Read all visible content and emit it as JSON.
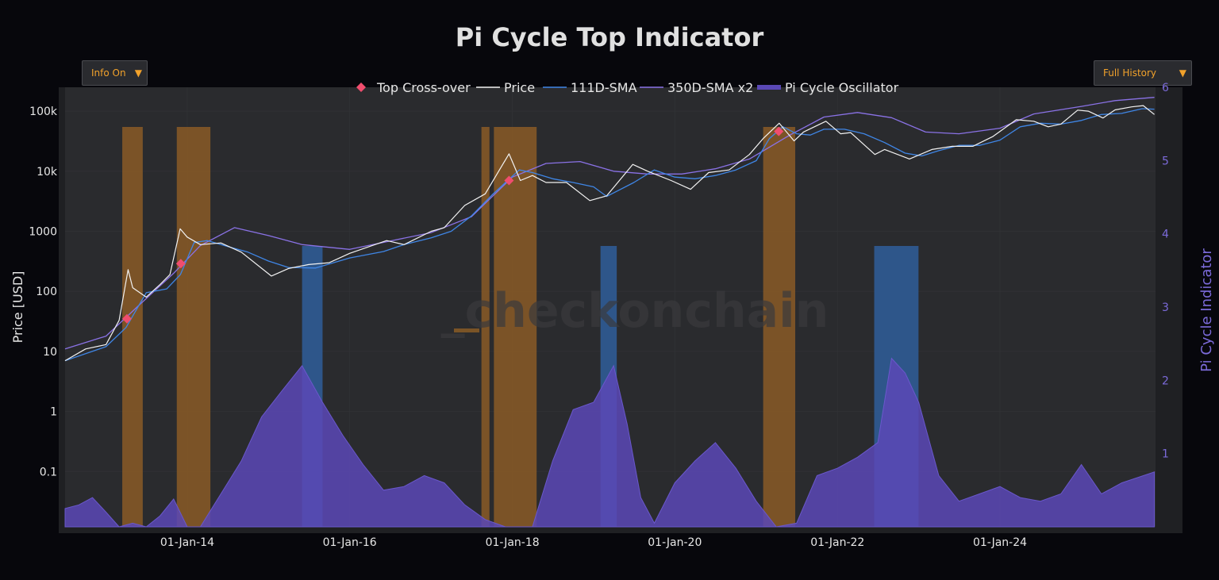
{
  "ui": {
    "info_dropdown": {
      "selected": "Info On"
    },
    "range_dropdown": {
      "selected": "Full History"
    }
  },
  "chart_data": {
    "type": "line",
    "title": "Pi Cycle Top Indicator",
    "ylabel": "Price [USD]",
    "y2label": "Pi Cycle Indicator",
    "watermark": "_checkonchain",
    "yscale": "log",
    "yticks": [
      {
        "value": 0.1,
        "label": "0.1"
      },
      {
        "value": 1,
        "label": "1"
      },
      {
        "value": 10,
        "label": "10"
      },
      {
        "value": 100,
        "label": "100"
      },
      {
        "value": 1000,
        "label": "1000"
      },
      {
        "value": 10000,
        "label": "10k"
      },
      {
        "value": 100000,
        "label": "100k"
      }
    ],
    "ylim": [
      0.012,
      250000
    ],
    "y2ticks": [
      1,
      2,
      3,
      4,
      5,
      6
    ],
    "y2lim": [
      0,
      6
    ],
    "xlim": [
      "2012-07-01",
      "2025-11-30"
    ],
    "xticks": [
      {
        "value": "2014-01-01",
        "label": "01-Jan-14"
      },
      {
        "value": "2016-01-01",
        "label": "01-Jan-16"
      },
      {
        "value": "2018-01-01",
        "label": "01-Jan-18"
      },
      {
        "value": "2020-01-01",
        "label": "01-Jan-20"
      },
      {
        "value": "2022-01-01",
        "label": "01-Jan-22"
      },
      {
        "value": "2024-01-01",
        "label": "01-Jan-24"
      }
    ],
    "legend": {
      "placement": "top-center",
      "entries": [
        "Top Cross-over",
        "Price",
        "111D-SMA",
        "350D-SMA x2",
        "Pi Cycle Oscillator"
      ]
    },
    "colors": {
      "price": "#f2f2f2",
      "sma111": "#3f86e6",
      "sma350x2": "#8a72e6",
      "oscillator": "#5a48b6",
      "top_band": "#8a5a26",
      "bottom_band": "#2f5e9a",
      "crossover": "#f04d6e",
      "plot_bg": "#2a2b2e"
    },
    "series": [
      {
        "name": "Price",
        "x": [
          "2012-07-01",
          "2012-10-01",
          "2013-01-01",
          "2013-03-01",
          "2013-04-10",
          "2013-05-01",
          "2013-07-01",
          "2013-09-01",
          "2013-10-15",
          "2013-11-30",
          "2014-01-01",
          "2014-03-01",
          "2014-06-01",
          "2014-09-01",
          "2015-01-14",
          "2015-04-01",
          "2015-07-01",
          "2015-10-01",
          "2016-01-01",
          "2016-06-15",
          "2016-09-01",
          "2017-01-01",
          "2017-03-01",
          "2017-06-01",
          "2017-09-01",
          "2017-12-17",
          "2018-02-06",
          "2018-04-01",
          "2018-06-01",
          "2018-09-01",
          "2018-12-15",
          "2019-03-01",
          "2019-06-26",
          "2019-09-01",
          "2019-12-15",
          "2020-03-12",
          "2020-06-01",
          "2020-09-01",
          "2020-12-01",
          "2021-02-01",
          "2021-04-14",
          "2021-06-20",
          "2021-08-01",
          "2021-11-10",
          "2022-01-15",
          "2022-03-01",
          "2022-06-18",
          "2022-08-01",
          "2022-11-20",
          "2023-03-01",
          "2023-06-01",
          "2023-09-01",
          "2023-12-01",
          "2024-03-14",
          "2024-06-01",
          "2024-08-05",
          "2024-10-01",
          "2024-12-15",
          "2025-02-01",
          "2025-04-08",
          "2025-06-01",
          "2025-08-15",
          "2025-10-06",
          "2025-11-25"
        ],
        "values": [
          7,
          11,
          13,
          33,
          230,
          115,
          80,
          130,
          190,
          1100,
          800,
          600,
          640,
          450,
          180,
          240,
          280,
          300,
          430,
          700,
          600,
          1000,
          1150,
          2700,
          4200,
          19500,
          7000,
          8500,
          6500,
          6500,
          3250,
          3900,
          13000,
          10000,
          7000,
          5000,
          9500,
          10500,
          19000,
          35000,
          63000,
          32000,
          45000,
          68000,
          42000,
          44000,
          19000,
          23000,
          16000,
          23000,
          26000,
          26000,
          38000,
          72000,
          68000,
          55000,
          61000,
          104000,
          100000,
          77000,
          105000,
          118000,
          124000,
          88000
        ]
      },
      {
        "name": "111D-SMA",
        "x": [
          "2012-07-01",
          "2013-01-01",
          "2013-04-01",
          "2013-07-01",
          "2013-10-01",
          "2013-12-01",
          "2014-02-01",
          "2014-04-01",
          "2014-07-01",
          "2014-10-01",
          "2015-01-01",
          "2015-04-01",
          "2015-08-01",
          "2016-01-01",
          "2016-06-01",
          "2016-09-01",
          "2017-01-01",
          "2017-04-01",
          "2017-07-01",
          "2017-10-01",
          "2017-12-01",
          "2018-02-01",
          "2018-04-01",
          "2018-07-01",
          "2018-10-01",
          "2019-01-01",
          "2019-03-01",
          "2019-07-01",
          "2019-10-01",
          "2020-01-01",
          "2020-04-01",
          "2020-07-01",
          "2020-10-01",
          "2021-01-01",
          "2021-03-01",
          "2021-05-01",
          "2021-07-01",
          "2021-09-01",
          "2021-11-01",
          "2022-02-01",
          "2022-05-01",
          "2022-08-01",
          "2022-11-01",
          "2023-01-15",
          "2023-04-01",
          "2023-07-01",
          "2023-10-01",
          "2024-01-01",
          "2024-04-01",
          "2024-07-01",
          "2024-10-01",
          "2025-01-01",
          "2025-04-01",
          "2025-07-01",
          "2025-10-01",
          "2025-11-25"
        ],
        "values": [
          7,
          12,
          25,
          95,
          110,
          190,
          650,
          700,
          560,
          450,
          320,
          250,
          245,
          360,
          460,
          600,
          780,
          1000,
          1800,
          4000,
          6500,
          10500,
          9500,
          7500,
          6500,
          5500,
          3800,
          6500,
          10500,
          8000,
          7500,
          8500,
          10500,
          15000,
          35000,
          55000,
          42000,
          40000,
          50000,
          50000,
          42000,
          30000,
          20000,
          18000,
          22000,
          27000,
          27000,
          33000,
          55000,
          63000,
          61000,
          70000,
          88000,
          92000,
          110000,
          108000
        ]
      },
      {
        "name": "350D-SMA x2",
        "x": [
          "2012-07-01",
          "2013-01-01",
          "2013-06-01",
          "2013-11-01",
          "2014-03-01",
          "2014-08-01",
          "2015-01-01",
          "2015-06-01",
          "2016-01-01",
          "2016-07-01",
          "2017-01-01",
          "2017-07-01",
          "2018-01-01",
          "2018-06-01",
          "2018-11-01",
          "2019-04-01",
          "2019-09-01",
          "2020-02-01",
          "2020-07-01",
          "2020-12-01",
          "2021-06-01",
          "2021-11-01",
          "2022-04-01",
          "2022-09-01",
          "2023-02-01",
          "2023-07-01",
          "2024-01-01",
          "2024-06-01",
          "2025-01-01",
          "2025-06-01",
          "2025-11-25"
        ],
        "values": [
          11,
          18,
          60,
          200,
          580,
          1150,
          850,
          600,
          500,
          690,
          950,
          1750,
          8000,
          13500,
          14500,
          10000,
          9000,
          9000,
          11000,
          16000,
          40000,
          80000,
          95000,
          78000,
          45000,
          42000,
          52000,
          90000,
          120000,
          150000,
          170000
        ]
      },
      {
        "name": "Pi Cycle Oscillator",
        "x": [
          "2012-07-01",
          "2012-09-01",
          "2012-11-01",
          "2013-01-01",
          "2013-03-01",
          "2013-05-01",
          "2013-07-01",
          "2013-09-01",
          "2013-11-01",
          "2014-01-01",
          "2014-03-01",
          "2014-06-01",
          "2014-09-01",
          "2014-12-01",
          "2015-03-01",
          "2015-06-01",
          "2015-09-01",
          "2015-12-01",
          "2016-03-01",
          "2016-06-01",
          "2016-09-01",
          "2016-12-01",
          "2017-03-01",
          "2017-06-01",
          "2017-09-01",
          "2017-12-01",
          "2018-02-01",
          "2018-04-01",
          "2018-07-01",
          "2018-10-01",
          "2019-01-01",
          "2019-04-01",
          "2019-06-01",
          "2019-08-01",
          "2019-10-01",
          "2020-01-01",
          "2020-04-01",
          "2020-07-01",
          "2020-10-01",
          "2021-01-01",
          "2021-04-01",
          "2021-07-01",
          "2021-10-01",
          "2022-01-01",
          "2022-04-01",
          "2022-07-01",
          "2022-09-01",
          "2022-11-01",
          "2023-01-01",
          "2023-04-01",
          "2023-07-01",
          "2023-10-01",
          "2024-01-01",
          "2024-04-01",
          "2024-07-01",
          "2024-10-01",
          "2025-01-01",
          "2025-04-01",
          "2025-07-01",
          "2025-11-25"
        ],
        "values": [
          0.25,
          0.3,
          0.4,
          0.2,
          0.0,
          0.05,
          0.0,
          0.15,
          0.38,
          0.0,
          0.0,
          0.45,
          0.9,
          1.5,
          1.85,
          2.2,
          1.7,
          1.25,
          0.85,
          0.5,
          0.55,
          0.7,
          0.6,
          0.3,
          0.1,
          0.0,
          0.0,
          0.0,
          0.9,
          1.6,
          1.7,
          2.2,
          1.4,
          0.4,
          0.05,
          0.6,
          0.9,
          1.15,
          0.8,
          0.35,
          0.0,
          0.05,
          0.7,
          0.8,
          0.95,
          1.15,
          2.3,
          2.1,
          1.7,
          0.7,
          0.35,
          0.45,
          0.55,
          0.4,
          0.35,
          0.45,
          0.85,
          0.45,
          0.6,
          0.75
        ]
      },
      {
        "name": "Top Cross-over",
        "x": [
          "2013-04-05",
          "2013-12-03",
          "2017-12-17",
          "2021-04-12"
        ],
        "values": [
          35,
          290,
          7000,
          46000
        ]
      }
    ],
    "top_bands": [
      [
        "2013-03-15",
        "2013-06-15"
      ],
      [
        "2013-11-15",
        "2014-04-15"
      ],
      [
        "2017-08-15",
        "2017-09-20"
      ],
      [
        "2017-10-10",
        "2018-04-20"
      ],
      [
        "2021-02-01",
        "2021-06-25"
      ]
    ],
    "bottom_bands": [
      [
        "2015-06-01",
        "2015-09-01"
      ],
      [
        "2019-02-01",
        "2019-04-15"
      ],
      [
        "2022-06-15",
        "2022-12-31"
      ]
    ]
  }
}
